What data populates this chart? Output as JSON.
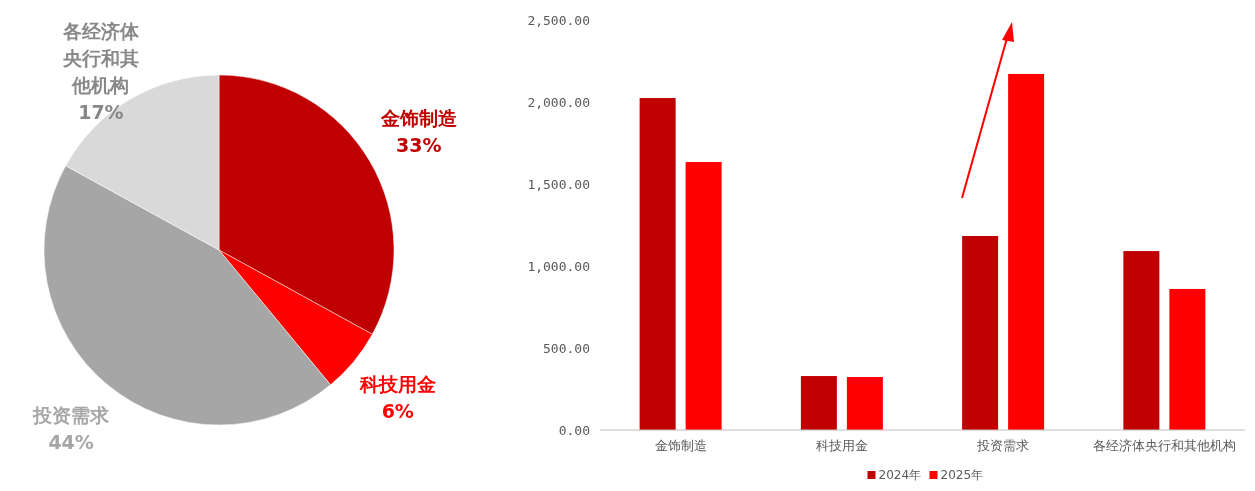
{
  "chart_data": [
    {
      "type": "pie",
      "categories": [
        "金饰制造",
        "科技用金",
        "投资需求",
        "各经济体央行和其他机构"
      ],
      "values": [
        33,
        6,
        44,
        17
      ],
      "colors": [
        "#c00000",
        "#ff0000",
        "#a6a6a6",
        "#d9d9d9"
      ],
      "value_labels": [
        "33%",
        "6%",
        "44%",
        "17%"
      ]
    },
    {
      "type": "bar",
      "categories": [
        "金饰制造",
        "科技用金",
        "投资需求",
        "各经济体央行和其他机构"
      ],
      "series": [
        {
          "name": "2024年",
          "color": "#c00000",
          "values": [
            2024,
            329,
            1183,
            1091
          ]
        },
        {
          "name": "2025年",
          "color": "#ff0000",
          "values": [
            1634,
            323,
            2171,
            860
          ]
        }
      ],
      "ylim": [
        0,
        2500
      ],
      "yticks": [
        {
          "value": 0,
          "label": "0.00"
        },
        {
          "value": 500,
          "label": "500.00"
        },
        {
          "value": 1000,
          "label": "1,000.00"
        },
        {
          "value": 1500,
          "label": "1,500.00"
        },
        {
          "value": 2000,
          "label": "2,000.00"
        },
        {
          "value": 2500,
          "label": "2,500.00"
        }
      ],
      "grid": false,
      "legend": "bottom"
    }
  ]
}
